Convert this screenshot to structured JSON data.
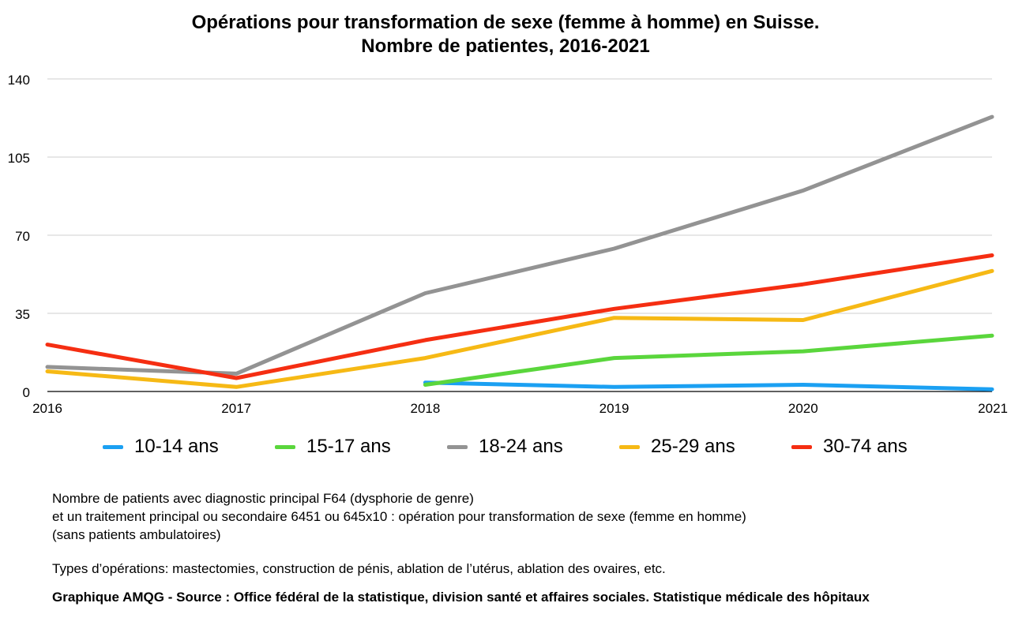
{
  "chart_data": {
    "type": "line",
    "title_line1": "Opérations pour transformation de sexe (femme à homme) en Suisse.",
    "title_line2": "Nombre de patientes, 2016-2021",
    "x": [
      "2016",
      "2017",
      "2018",
      "2019",
      "2020",
      "2021"
    ],
    "ylim": [
      0,
      140
    ],
    "yticks": [
      "0",
      "35",
      "70",
      "105",
      "140"
    ],
    "grid": true,
    "legend_position": "bottom",
    "series": [
      {
        "name": "10-14 ans",
        "color": "#1ba0f2",
        "values": [
          null,
          null,
          4,
          2,
          3,
          1
        ]
      },
      {
        "name": "15-17 ans",
        "color": "#5ad63c",
        "values": [
          null,
          null,
          3,
          15,
          18,
          25
        ]
      },
      {
        "name": "18-24 ans",
        "color": "#939393",
        "values": [
          11,
          8,
          44,
          64,
          90,
          123
        ]
      },
      {
        "name": "25-29 ans",
        "color": "#f6b915",
        "values": [
          9,
          2,
          15,
          33,
          32,
          54
        ]
      },
      {
        "name": "30-74 ans",
        "color": "#f52e12",
        "values": [
          21,
          6,
          23,
          37,
          48,
          61
        ]
      }
    ]
  },
  "notes": {
    "line1": "Nombre de patients avec diagnostic principal F64 (dysphorie de genre)",
    "line2": "et un traitement principal ou secondaire 6451 ou 645x10 : opération pour transformation de sexe (femme en homme)",
    "line3": "(sans patients ambulatoires)",
    "types": "Types d’opérations: mastectomies, construction de pénis, ablation de l’utérus, ablation des ovaires, etc."
  },
  "source": "Graphique AMQG - Source : Office fédéral de la statistique, division santé et affaires sociales. Statistique médicale des hôpitaux"
}
